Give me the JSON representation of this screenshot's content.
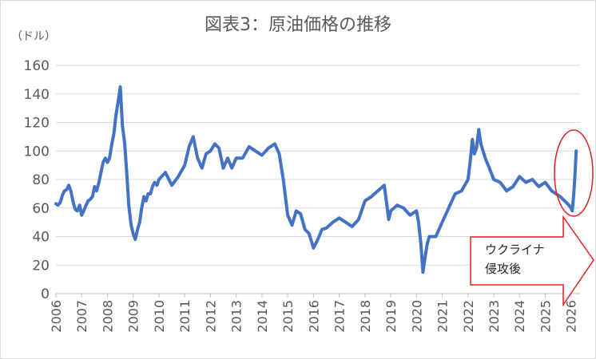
{
  "chart_data": {
    "type": "line",
    "title": "図表3：原油価格の推移",
    "ylabel": "（ドル）",
    "xlabel": "",
    "ylim": [
      0,
      160
    ],
    "xlim": [
      2006,
      2026.35
    ],
    "y_ticks": [
      "0",
      "20",
      "40",
      "60",
      "80",
      "100",
      "120",
      "140",
      "160"
    ],
    "x_ticks": [
      "2006",
      "2007",
      "2008",
      "2009",
      "2010",
      "2011",
      "2012",
      "2013",
      "2014",
      "2015",
      "2016",
      "2017",
      "2018",
      "2019",
      "2020",
      "2021",
      "2022",
      "2023",
      "2024",
      "2025",
      "2026"
    ],
    "grid": "horizontal",
    "legend": "none",
    "series_color": "#4472c4",
    "x": [
      2006,
      2006.08,
      2006.17,
      2006.25,
      2006.33,
      2006.42,
      2006.5,
      2006.58,
      2006.67,
      2006.75,
      2006.83,
      2006.92,
      2007,
      2007.08,
      2007.17,
      2007.25,
      2007.33,
      2007.42,
      2007.5,
      2007.58,
      2007.67,
      2007.75,
      2007.83,
      2007.92,
      2008,
      2008.08,
      2008.17,
      2008.25,
      2008.33,
      2008.42,
      2008.5,
      2008.58,
      2008.67,
      2008.75,
      2008.83,
      2008.92,
      2009,
      2009.08,
      2009.17,
      2009.25,
      2009.33,
      2009.42,
      2009.5,
      2009.58,
      2009.67,
      2009.75,
      2009.83,
      2009.92,
      2010,
      2010.25,
      2010.5,
      2010.75,
      2011,
      2011.17,
      2011.33,
      2011.5,
      2011.67,
      2011.83,
      2012,
      2012.17,
      2012.33,
      2012.5,
      2012.67,
      2012.83,
      2013,
      2013.25,
      2013.5,
      2013.75,
      2014,
      2014.25,
      2014.5,
      2014.67,
      2014.83,
      2015,
      2015.17,
      2015.33,
      2015.5,
      2015.67,
      2015.83,
      2016,
      2016.17,
      2016.33,
      2016.5,
      2016.75,
      2017,
      2017.25,
      2017.5,
      2017.75,
      2018,
      2018.25,
      2018.5,
      2018.75,
      2018.92,
      2019,
      2019.25,
      2019.5,
      2019.75,
      2020,
      2020.08,
      2020.17,
      2020.25,
      2020.33,
      2020.42,
      2020.5,
      2020.75,
      2021,
      2021.25,
      2021.5,
      2021.75,
      2022,
      2022.08,
      2022.17,
      2022.25,
      2022.33,
      2022.42,
      2022.5,
      2022.67,
      2022.83,
      2023,
      2023.25,
      2023.5,
      2023.75,
      2024,
      2024.25,
      2024.5,
      2024.75,
      2025,
      2025.25,
      2025.42,
      2025.58,
      2025.75,
      2025.92,
      2026,
      2026.05,
      2026.1,
      2026.15,
      2026.2
    ],
    "values": [
      63,
      62,
      64,
      69,
      72,
      73,
      76,
      72,
      64,
      59,
      58,
      62,
      55,
      58,
      62,
      65,
      66,
      68,
      75,
      72,
      78,
      85,
      92,
      95,
      92,
      95,
      105,
      112,
      125,
      135,
      145,
      118,
      105,
      85,
      62,
      48,
      42,
      38,
      45,
      50,
      60,
      68,
      65,
      70,
      70,
      75,
      78,
      76,
      80,
      85,
      76,
      82,
      90,
      103,
      110,
      95,
      88,
      98,
      100,
      105,
      102,
      88,
      95,
      88,
      95,
      95,
      103,
      100,
      97,
      102,
      105,
      98,
      80,
      55,
      48,
      58,
      56,
      45,
      42,
      32,
      38,
      45,
      46,
      50,
      53,
      50,
      47,
      52,
      65,
      68,
      72,
      76,
      52,
      58,
      62,
      60,
      55,
      58,
      50,
      35,
      15,
      25,
      35,
      40,
      40,
      50,
      60,
      70,
      72,
      80,
      92,
      108,
      98,
      102,
      115,
      105,
      95,
      88,
      80,
      78,
      72,
      75,
      82,
      78,
      80,
      75,
      78,
      72,
      70,
      68,
      65,
      62,
      60,
      58,
      68,
      82,
      100
    ],
    "annotations": [
      {
        "text": "ウクライナ\n侵攻後",
        "type": "callout-arrow"
      }
    ]
  }
}
